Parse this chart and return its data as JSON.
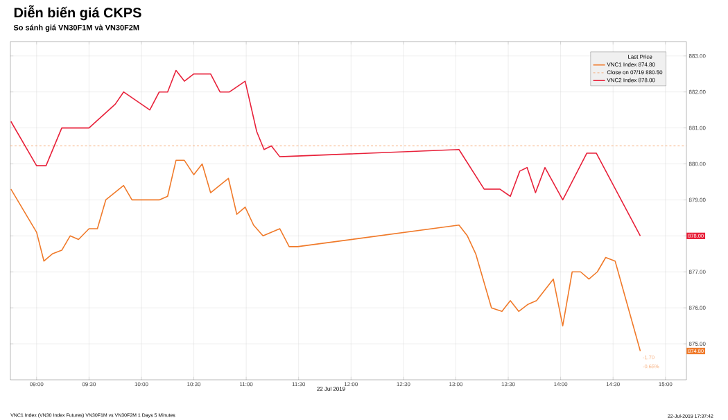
{
  "chart_data": {
    "type": "line",
    "title": "Diễn biến giá CKPS",
    "subtitle": "So sánh giá VN30F1M và VN30F2M",
    "xlabel": "22 Jul 2019",
    "legend_title": "Last Price",
    "series": [
      {
        "name": "VNC1 Index 874.80",
        "color": "#f07a2a",
        "x": [
          8.755,
          9.0,
          9.07,
          9.15,
          9.24,
          9.32,
          9.4,
          9.5,
          9.58,
          9.66,
          9.83,
          9.91,
          10.17,
          10.25,
          10.33,
          10.41,
          10.5,
          10.58,
          10.66,
          10.83,
          10.91,
          10.99,
          11.07,
          11.16,
          11.32,
          11.41,
          11.49,
          13.03,
          13.11,
          13.19,
          13.34,
          13.44,
          13.52,
          13.6,
          13.69,
          13.77,
          13.93,
          14.02,
          14.11,
          14.19,
          14.27,
          14.35,
          14.43,
          14.52,
          14.76
        ],
        "values": [
          879.3,
          878.1,
          877.3,
          877.5,
          877.6,
          878.0,
          877.9,
          878.2,
          878.2,
          879.0,
          879.4,
          879.0,
          879.0,
          879.1,
          880.1,
          880.1,
          879.7,
          880.0,
          879.2,
          879.6,
          878.6,
          878.8,
          878.3,
          878.0,
          878.2,
          877.7,
          877.7,
          878.3,
          878.0,
          877.5,
          876.0,
          875.9,
          876.2,
          875.9,
          876.1,
          876.2,
          876.8,
          875.5,
          877.0,
          877.0,
          876.8,
          877.0,
          877.4,
          877.3,
          874.8
        ]
      },
      {
        "name": "VNC2 Index 878.00",
        "color": "#e8213a",
        "x": [
          8.755,
          9.0,
          9.09,
          9.24,
          9.5,
          9.75,
          9.83,
          10.08,
          10.17,
          10.25,
          10.33,
          10.41,
          10.5,
          10.66,
          10.75,
          10.84,
          10.99,
          11.1,
          11.17,
          11.24,
          11.32,
          13.03,
          13.27,
          13.42,
          13.52,
          13.61,
          13.68,
          13.76,
          13.85,
          14.02,
          14.25,
          14.34,
          14.76
        ],
        "values": [
          881.18,
          879.95,
          879.95,
          881.0,
          881.0,
          881.66,
          882.0,
          881.5,
          882.0,
          882.0,
          882.6,
          882.3,
          882.5,
          882.5,
          882.0,
          882.0,
          882.3,
          880.9,
          880.4,
          880.5,
          880.2,
          880.4,
          879.3,
          879.3,
          879.1,
          879.8,
          879.9,
          879.2,
          879.9,
          879.0,
          880.3,
          880.3,
          878.0
        ]
      }
    ],
    "ref_lines": [
      {
        "axis": "y",
        "value": 880.5,
        "label": "Close on 07/19 880.50",
        "color": "#f5a36a",
        "line_style": "dashed"
      }
    ],
    "annotations": [
      {
        "text": "878.00",
        "y": 878.0
      },
      {
        "text": "874.80",
        "y": 874.8
      },
      {
        "text": "-1.70",
        "x": 14.76,
        "y": 874.8
      },
      {
        "text": "-0.65%",
        "x": 14.76,
        "y": 874.8
      },
      "VNC1 Index (VN30 Index Futures) VN30F1M vs VN30F2M 1 Days 5 Minutes",
      "22-Jul-2019 17:37:42"
    ],
    "xlim": [
      8.75,
      15.2
    ],
    "ylim": [
      874.0,
      883.4
    ],
    "xticks": [
      {
        "value": 9,
        "label": "09:00"
      },
      {
        "value": 9.5,
        "label": "09:30"
      },
      {
        "value": 10,
        "label": "10:00"
      },
      {
        "value": 10.5,
        "label": "10:30"
      },
      {
        "value": 11,
        "label": "11:00"
      },
      {
        "value": 11.5,
        "label": "11:30"
      },
      {
        "value": 12,
        "label": "12:00"
      },
      {
        "value": 12.5,
        "label": "12:30"
      },
      {
        "value": 13,
        "label": "13:00"
      },
      {
        "value": 13.5,
        "label": "13:30"
      },
      {
        "value": 14,
        "label": "14:00"
      },
      {
        "value": 14.5,
        "label": "14:30"
      },
      {
        "value": 15,
        "label": "15:00"
      }
    ],
    "yticks": [
      {
        "value": 875,
        "label": "875.00"
      },
      {
        "value": 876,
        "label": "876.00"
      },
      {
        "value": 877,
        "label": "877.00"
      },
      {
        "value": 878,
        "label": null
      },
      {
        "value": 879,
        "label": "879.00"
      },
      {
        "value": 880,
        "label": "880.00"
      },
      {
        "value": 881,
        "label": "881.00"
      },
      {
        "value": 882,
        "label": "882.00"
      },
      {
        "value": 883,
        "label": "883.00"
      }
    ],
    "grid": true,
    "legend": "top right",
    "marker": "none",
    "line_style": "solid"
  }
}
